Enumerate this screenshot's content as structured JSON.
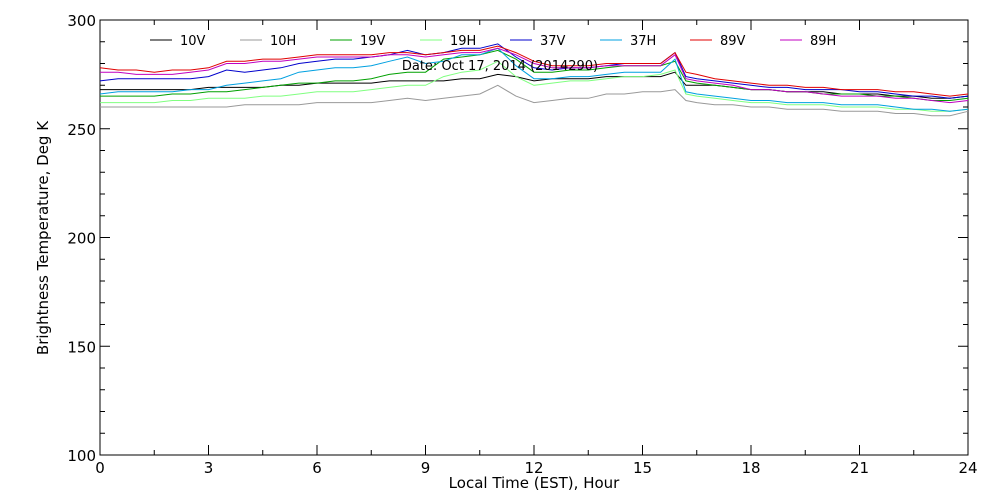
{
  "chart_data": {
    "type": "line",
    "title": "",
    "annotation": "Date: Oct 17, 2014 (2014290)",
    "xlabel": "Local Time (EST), Hour",
    "ylabel": "Brightness Temperature, Deg K",
    "xlim": [
      0,
      24
    ],
    "ylim": [
      100,
      300
    ],
    "xticks": [
      0,
      3,
      6,
      9,
      12,
      15,
      18,
      21,
      24
    ],
    "yticks": [
      100,
      150,
      200,
      250,
      300
    ],
    "grid": false,
    "legend_position": "top",
    "x": [
      0,
      0.5,
      1,
      1.5,
      2,
      2.5,
      3,
      3.5,
      4,
      4.5,
      5,
      5.5,
      6,
      6.5,
      7,
      7.5,
      8,
      8.5,
      9,
      9.5,
      10,
      10.5,
      11,
      11.5,
      12,
      12.5,
      13,
      13.5,
      14,
      14.5,
      15,
      15.5,
      15.9,
      16.2,
      16.5,
      17,
      17.5,
      18,
      18.5,
      19,
      19.5,
      20,
      20.5,
      21,
      21.5,
      22,
      22.5,
      23,
      23.5,
      24
    ],
    "series": [
      {
        "name": "10V",
        "color": "#000000",
        "values": [
          268,
          268,
          268,
          268,
          268,
          268,
          269,
          269,
          269,
          269,
          270,
          270,
          271,
          271,
          271,
          271,
          272,
          272,
          272,
          272,
          273,
          273,
          275,
          274,
          272,
          273,
          273,
          273,
          274,
          274,
          274,
          274,
          276,
          270,
          270,
          270,
          269,
          268,
          268,
          267,
          267,
          267,
          266,
          266,
          266,
          265,
          265,
          264,
          264,
          265
        ]
      },
      {
        "name": "10H",
        "color": "#999999",
        "values": [
          260,
          260,
          260,
          260,
          260,
          260,
          260,
          260,
          261,
          261,
          261,
          261,
          262,
          262,
          262,
          262,
          263,
          264,
          263,
          264,
          265,
          266,
          270,
          265,
          262,
          263,
          264,
          264,
          266,
          266,
          267,
          267,
          268,
          263,
          262,
          261,
          261,
          260,
          260,
          259,
          259,
          259,
          258,
          258,
          258,
          257,
          257,
          256,
          256,
          258
        ]
      },
      {
        "name": "19V",
        "color": "#00a000",
        "values": [
          265,
          265,
          265,
          265,
          266,
          266,
          267,
          267,
          268,
          269,
          270,
          271,
          271,
          272,
          272,
          273,
          275,
          276,
          276,
          282,
          283,
          284,
          286,
          282,
          276,
          276,
          277,
          277,
          278,
          279,
          279,
          279,
          281,
          272,
          271,
          270,
          269,
          268,
          268,
          267,
          267,
          266,
          266,
          266,
          265,
          265,
          264,
          263,
          263,
          264
        ]
      },
      {
        "name": "19H",
        "color": "#80ff80",
        "values": [
          262,
          262,
          262,
          262,
          263,
          263,
          264,
          264,
          264,
          265,
          265,
          266,
          267,
          267,
          267,
          268,
          269,
          270,
          270,
          274,
          276,
          277,
          281,
          274,
          270,
          271,
          272,
          272,
          273,
          274,
          274,
          275,
          277,
          266,
          265,
          264,
          263,
          262,
          262,
          261,
          261,
          261,
          260,
          260,
          260,
          259,
          259,
          258,
          258,
          259
        ]
      },
      {
        "name": "37V",
        "color": "#0000cc",
        "values": [
          272,
          273,
          273,
          273,
          273,
          273,
          274,
          277,
          276,
          277,
          278,
          280,
          281,
          282,
          282,
          283,
          284,
          286,
          284,
          285,
          287,
          287,
          289,
          283,
          278,
          277,
          278,
          278,
          279,
          280,
          280,
          280,
          285,
          274,
          273,
          272,
          271,
          270,
          269,
          269,
          268,
          268,
          268,
          267,
          267,
          266,
          265,
          265,
          264,
          265
        ]
      },
      {
        "name": "37H",
        "color": "#00a0e0",
        "values": [
          266,
          267,
          267,
          267,
          267,
          268,
          268,
          270,
          271,
          272,
          273,
          276,
          277,
          278,
          278,
          279,
          281,
          283,
          280,
          281,
          284,
          284,
          287,
          279,
          273,
          273,
          274,
          274,
          275,
          276,
          276,
          276,
          282,
          267,
          266,
          265,
          264,
          263,
          263,
          262,
          262,
          262,
          261,
          261,
          261,
          260,
          259,
          259,
          258,
          259
        ]
      },
      {
        "name": "89V",
        "color": "#e00000",
        "values": [
          278,
          277,
          277,
          276,
          277,
          277,
          278,
          281,
          281,
          282,
          282,
          283,
          284,
          284,
          284,
          284,
          285,
          285,
          284,
          285,
          286,
          286,
          288,
          285,
          281,
          279,
          279,
          279,
          280,
          280,
          280,
          280,
          285,
          276,
          275,
          273,
          272,
          271,
          270,
          270,
          269,
          269,
          268,
          268,
          268,
          267,
          267,
          266,
          265,
          266
        ]
      },
      {
        "name": "89H",
        "color": "#c000c0",
        "values": [
          276,
          276,
          275,
          275,
          275,
          276,
          277,
          280,
          280,
          281,
          281,
          282,
          283,
          283,
          283,
          283,
          284,
          284,
          283,
          284,
          285,
          285,
          287,
          284,
          280,
          278,
          278,
          278,
          279,
          279,
          279,
          279,
          284,
          273,
          272,
          271,
          270,
          268,
          268,
          267,
          267,
          266,
          265,
          265,
          265,
          264,
          264,
          263,
          262,
          263
        ]
      }
    ]
  }
}
